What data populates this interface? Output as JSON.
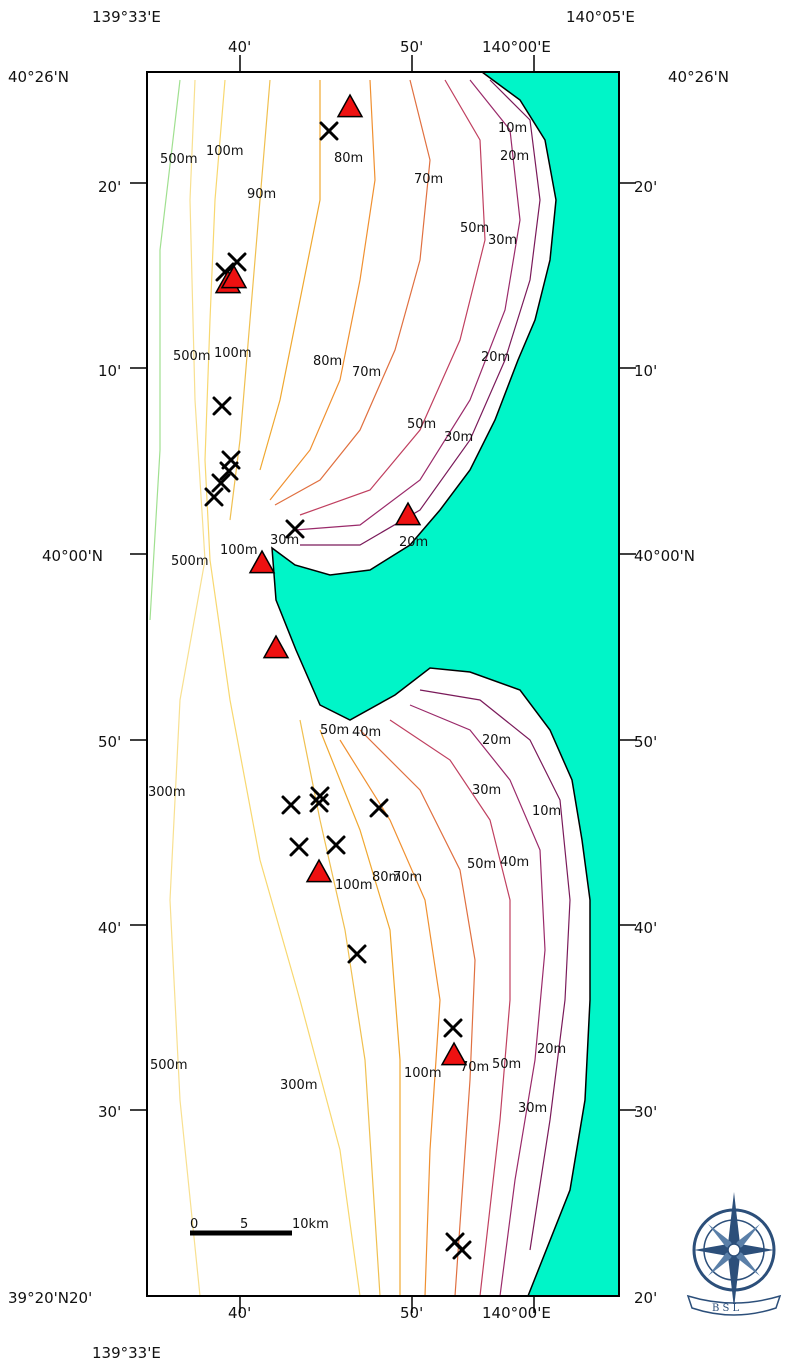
{
  "map": {
    "top_labels": [
      "139°33'E",
      "140°05'E"
    ],
    "bottom_labels": [
      "139°33'E"
    ],
    "inner_top": [
      "40'",
      "50'",
      "140°00'E"
    ],
    "inner_bottom": [
      "40'",
      "50'",
      "140°00'E"
    ],
    "left_labels": [
      "40°26'N",
      "20'",
      "10'",
      "40°00'N",
      "50'",
      "40'",
      "30'",
      "39°20'N20'"
    ],
    "right_labels": [
      "40°26'N",
      "20'",
      "10'",
      "40°00'N",
      "50'",
      "40'",
      "30'",
      "20'"
    ],
    "depth_labels": [
      "10m",
      "20m",
      "80m",
      "500m",
      "100m",
      "90m",
      "70m",
      "50m",
      "30m",
      "500m",
      "100m",
      "80m",
      "70m",
      "20m",
      "50m",
      "30m",
      "20m",
      "30m",
      "100m",
      "500m",
      "50m",
      "40m",
      "20m",
      "30m",
      "10m",
      "40m",
      "50m",
      "300m",
      "100m",
      "80m",
      "70m",
      "500m",
      "300m",
      "100m",
      "70m",
      "50m",
      "20m",
      "30m"
    ],
    "scale_bar": {
      "ticks": [
        "0",
        "5",
        "10km"
      ]
    },
    "logo_text": "B  S  L",
    "colors": {
      "sea_land_fill": "#00f5c8",
      "triangle": "#ee1111",
      "marker": "#000000"
    }
  }
}
